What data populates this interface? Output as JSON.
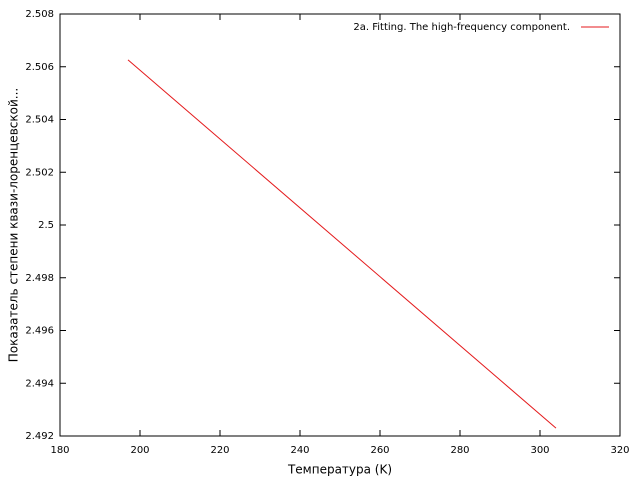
{
  "chart_data": {
    "type": "line",
    "x_label": "Температура (K)",
    "y_label": "Показатель степени квази-лоренцевской...",
    "x": [
      197,
      304
    ],
    "series": [
      {
        "name": "2a. Fitting. The high-frequency component.",
        "color": "#e41a1c",
        "values": [
          2.50626,
          2.4923
        ]
      }
    ],
    "xlim": [
      180,
      320
    ],
    "xticks": [
      180,
      200,
      220,
      240,
      260,
      280,
      300,
      320
    ],
    "ylim": [
      2.492,
      2.508
    ],
    "yticks": [
      2.492,
      2.494,
      2.496,
      2.498,
      2.5,
      2.502,
      2.504,
      2.506,
      2.508
    ],
    "grid": false,
    "legend": "top-right"
  }
}
